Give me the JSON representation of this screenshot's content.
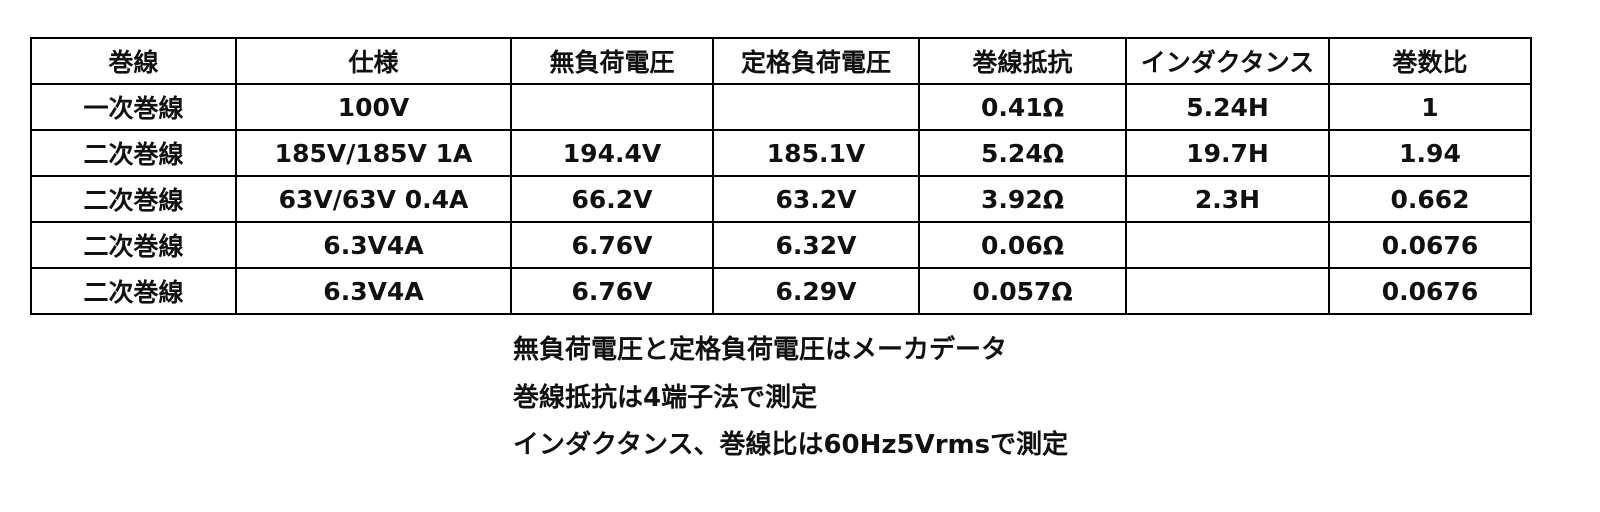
{
  "table": {
    "header": [
      "巻線",
      "仕様",
      "無負荷電圧",
      "定格負荷電圧",
      "巻線抵抗",
      "インダクタンス",
      "巻数比"
    ],
    "rows": [
      [
        "一次巻線",
        "100V",
        null,
        null,
        "0.41Ω",
        "5.24H",
        "1"
      ],
      [
        "二次巻線",
        "185V/185V 1A",
        "194.4V",
        "185.1V",
        "5.24Ω",
        "19.7H",
        "1.94"
      ],
      [
        "二次巻線",
        "63V/63V 0.4A",
        "66.2V",
        "63.2V",
        "3.92Ω",
        "2.3H",
        "0.662"
      ],
      [
        "二次巻線",
        "6.3V4A",
        "6.76V",
        "6.32V",
        "0.06Ω",
        null,
        "0.0676"
      ],
      [
        "二次巻線",
        "6.3V4A",
        "6.76V",
        "6.29V",
        "0.057Ω",
        null,
        "0.0676"
      ]
    ]
  },
  "notes": [
    "無負荷電圧と定格負荷電圧はメーカデータ",
    "巻線抵抗は4端子法で測定",
    "インダクタンス、巻線比は60Hz5Vrmsで測定"
  ]
}
